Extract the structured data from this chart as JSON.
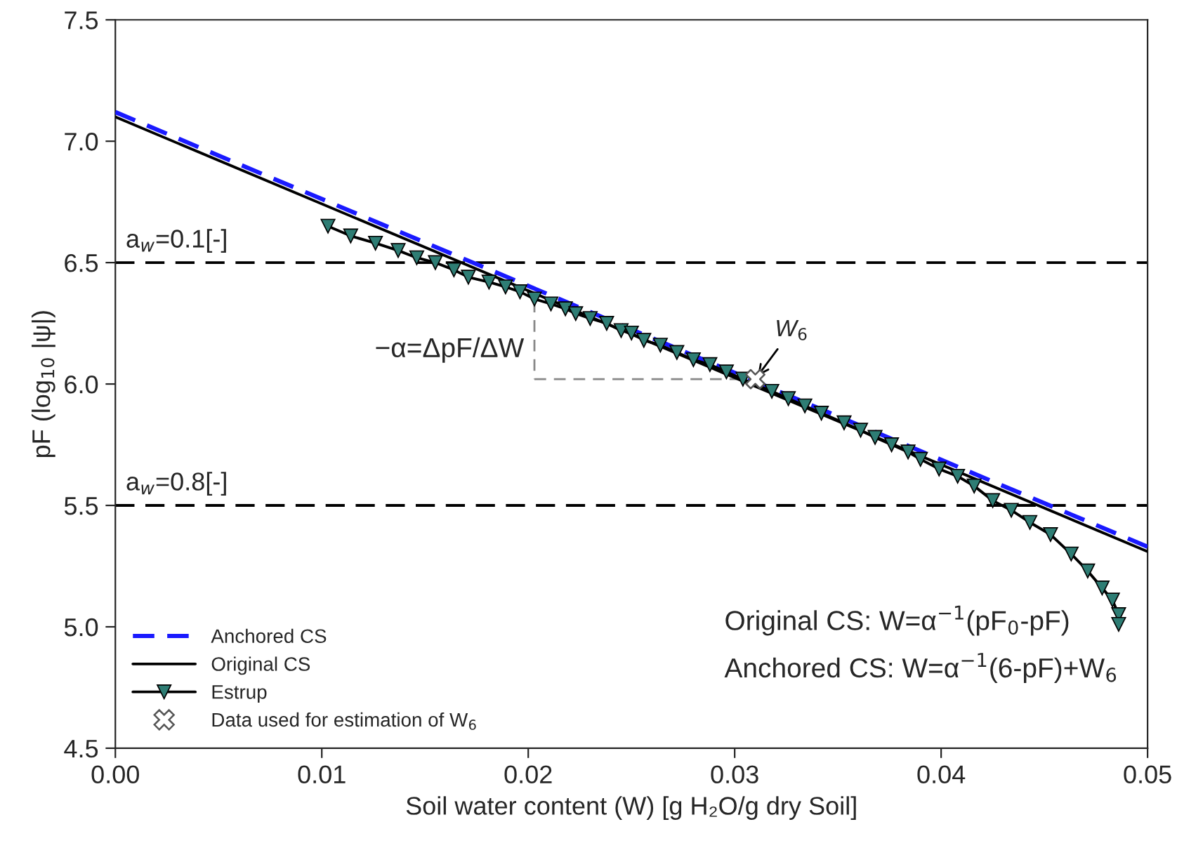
{
  "chart_data": {
    "type": "line",
    "xlabel": "Soil water content (W) [g H₂O/g dry Soil]",
    "ylabel": "pF (log$_{10}$ |ψ|)",
    "xlim": [
      0.0,
      0.05
    ],
    "xticks": [
      {
        "value": 0.0,
        "label": "0.00"
      },
      {
        "value": 0.01,
        "label": "0.01"
      },
      {
        "value": 0.02,
        "label": "0.02"
      },
      {
        "value": 0.03,
        "label": "0.03"
      },
      {
        "value": 0.04,
        "label": "0.04"
      },
      {
        "value": 0.05,
        "label": "0.05"
      }
    ],
    "ylim": [
      4.5,
      7.5
    ],
    "yticks": [
      4.5,
      {
        "value": 5,
        "label": "5.0"
      },
      5.5,
      {
        "value": 6,
        "label": "6.0"
      },
      6.5,
      {
        "value": 7,
        "label": "7.0"
      },
      7.5
    ],
    "grid": false,
    "legend": "bottom left",
    "series": [
      {
        "name": "Anchored CS",
        "color": "#1a1aff",
        "line_style": "dashed",
        "x": [
          0.0,
          0.05
        ],
        "values": [
          7.12,
          5.33
        ]
      },
      {
        "name": "Original CS",
        "color": "#000000",
        "line_style": "solid",
        "x": [
          0.0,
          0.05
        ],
        "values": [
          7.1,
          5.31
        ]
      },
      {
        "name": "Estrup",
        "color": "#2e7d74",
        "marker": "triangle",
        "line_style": "solid",
        "x": [
          0.0103,
          0.0114,
          0.0126,
          0.0137,
          0.0146,
          0.0155,
          0.0164,
          0.0171,
          0.0181,
          0.0189,
          0.0196,
          0.0203,
          0.0211,
          0.0218,
          0.0223,
          0.023,
          0.0238,
          0.0245,
          0.025,
          0.0256,
          0.0264,
          0.0272,
          0.028,
          0.0288,
          0.0296,
          0.0304,
          0.031,
          0.0318,
          0.0326,
          0.0334,
          0.0342,
          0.0353,
          0.0361,
          0.0368,
          0.0376,
          0.0384,
          0.039,
          0.0399,
          0.0408,
          0.0416,
          0.0425,
          0.0434,
          0.0443,
          0.0453,
          0.0463,
          0.0471,
          0.0478,
          0.0483,
          0.0486,
          0.0486
        ],
        "values": [
          6.65,
          6.61,
          6.58,
          6.55,
          6.52,
          6.5,
          6.47,
          6.44,
          6.42,
          6.4,
          6.38,
          6.35,
          6.33,
          6.31,
          6.29,
          6.27,
          6.25,
          6.22,
          6.21,
          6.18,
          6.16,
          6.13,
          6.1,
          6.08,
          6.05,
          6.02,
          null,
          5.97,
          5.94,
          5.91,
          5.88,
          5.84,
          5.81,
          5.78,
          5.75,
          5.72,
          5.69,
          5.65,
          5.62,
          5.58,
          5.52,
          5.48,
          5.43,
          5.38,
          5.3,
          5.23,
          5.16,
          5.11,
          5.05,
          5.01
        ]
      },
      {
        "name": "Data used for estimation of W$_{6}$",
        "type": "scatter",
        "color": "#555555",
        "marker": "cross",
        "x": [
          0.031
        ],
        "values": [
          6.02
        ]
      }
    ],
    "ref_lines": [
      {
        "axis": "y",
        "value": 6.5,
        "color": "#000000",
        "line_style": "dashed"
      },
      {
        "axis": "y",
        "value": 5.5,
        "color": "#000000",
        "line_style": "dashed"
      }
    ],
    "annotations": [
      {
        "text": "W$_{6}$",
        "x": 0.031,
        "y": 6.02
      },
      {
        "text": "−α=ΔpF/ΔW",
        "x": 0.031,
        "y": 6.02
      },
      {
        "text": "a$_{w}$=0.1[-]",
        "y": 6.5
      },
      {
        "text": "a$_{w}$=0.8[-]",
        "y": 5.5
      },
      "Original CS: W=α$^{−1}$(pF$_{0}$-pF)",
      "Anchored CS: W=α$^{−1}$(6-pF)+W$_{6}$"
    ]
  }
}
